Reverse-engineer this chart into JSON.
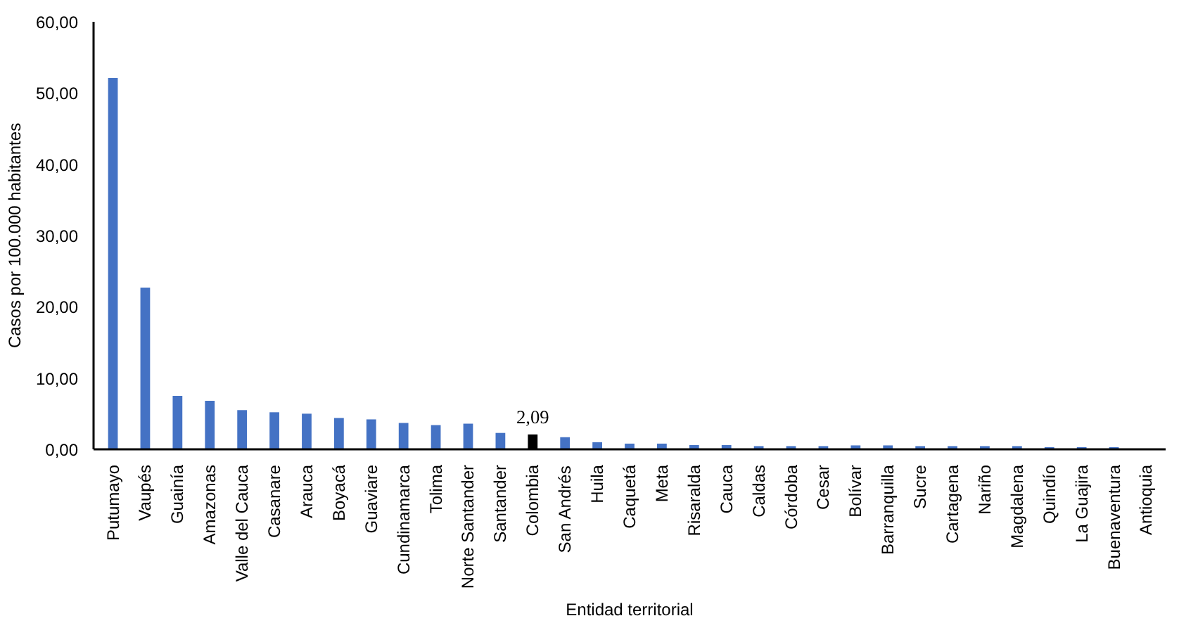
{
  "chart_data": {
    "type": "bar",
    "xlabel": "Entidad territorial",
    "ylabel": "Casos por 100.000 habitantes",
    "categories": [
      "Putumayo",
      "Vaupés",
      "Guainía",
      "Amazonas",
      "Valle del Cauca",
      "Casanare",
      "Arauca",
      "Boyacá",
      "Guaviare",
      "Cundinamarca",
      "Tolima",
      "Norte Santander",
      "Santander",
      "Colombia",
      "San Andrés",
      "Huila",
      "Caquetá",
      "Meta",
      "Risaralda",
      "Cauca",
      "Caldas",
      "Córdoba",
      "Cesar",
      "Bolívar",
      "Barranquilla",
      "Sucre",
      "Cartagena",
      "Nariño",
      "Magdalena",
      "Quindío",
      "La Guajira",
      "Buenaventura",
      "Antioquia"
    ],
    "values": [
      52.1,
      22.7,
      7.5,
      6.8,
      5.5,
      5.2,
      5.0,
      4.4,
      4.2,
      3.7,
      3.4,
      3.6,
      2.3,
      2.09,
      1.7,
      1.0,
      0.8,
      0.8,
      0.6,
      0.6,
      0.45,
      0.45,
      0.45,
      0.55,
      0.55,
      0.45,
      0.45,
      0.45,
      0.45,
      0.3,
      0.3,
      0.3,
      0.05
    ],
    "colors": [
      "#4472c4",
      "#4472c4",
      "#4472c4",
      "#4472c4",
      "#4472c4",
      "#4472c4",
      "#4472c4",
      "#4472c4",
      "#4472c4",
      "#4472c4",
      "#4472c4",
      "#4472c4",
      "#4472c4",
      "#000000",
      "#4472c4",
      "#4472c4",
      "#4472c4",
      "#4472c4",
      "#4472c4",
      "#4472c4",
      "#4472c4",
      "#4472c4",
      "#4472c4",
      "#4472c4",
      "#4472c4",
      "#4472c4",
      "#4472c4",
      "#4472c4",
      "#4472c4",
      "#4472c4",
      "#4472c4",
      "#4472c4",
      "#4472c4"
    ],
    "value_labels": [
      null,
      null,
      null,
      null,
      null,
      null,
      null,
      null,
      null,
      null,
      null,
      null,
      null,
      "2,09",
      null,
      null,
      null,
      null,
      null,
      null,
      null,
      null,
      null,
      null,
      null,
      null,
      null,
      null,
      null,
      null,
      null,
      null,
      null
    ],
    "ylim": [
      0,
      60
    ],
    "yticks": [
      {
        "value": 0,
        "label": "0,00"
      },
      {
        "value": 10,
        "label": "10,00"
      },
      {
        "value": 20,
        "label": "20,00"
      },
      {
        "value": 30,
        "label": "30,00"
      },
      {
        "value": 40,
        "label": "40,00"
      },
      {
        "value": 50,
        "label": "50,00"
      },
      {
        "value": 60,
        "label": "60,00"
      }
    ],
    "grid": false
  }
}
